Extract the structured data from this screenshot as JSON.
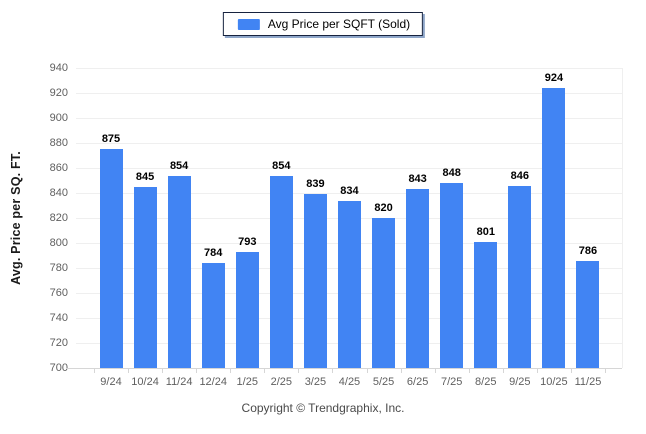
{
  "chart_data": {
    "type": "bar",
    "title": "",
    "legend": "Avg Price per SQFT (Sold)",
    "ylabel": "Avg. Price per SQ. FT.",
    "xlabel": "",
    "categories": [
      "9/24",
      "10/24",
      "11/24",
      "12/24",
      "1/25",
      "2/25",
      "3/25",
      "4/25",
      "5/25",
      "6/25",
      "7/25",
      "8/25",
      "9/25",
      "10/25",
      "11/25"
    ],
    "values": [
      875,
      845,
      854,
      784,
      793,
      854,
      839,
      834,
      820,
      843,
      848,
      801,
      846,
      924,
      786
    ],
    "ylim": [
      700,
      940
    ],
    "ytick_step": 20,
    "grid": true,
    "legend_position": "top-center",
    "bar_color": "#4184F3",
    "gridline_color": "#efefef",
    "axis_line_color": "#d6d6d6",
    "tick_label_color": "#5f5f5f",
    "value_label_color": "#000000"
  },
  "footer": {
    "copyright": "Copyright © Trendgraphix, Inc."
  }
}
